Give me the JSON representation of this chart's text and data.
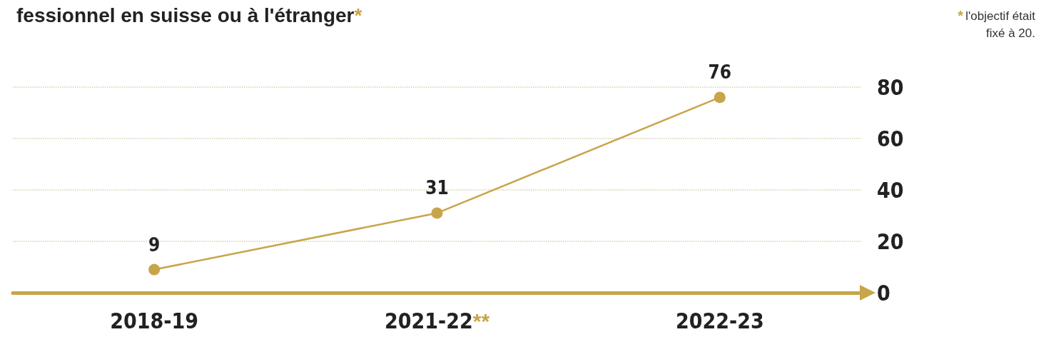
{
  "chart_data": {
    "type": "line",
    "title": "fessionnel en suisse ou à l'étranger*",
    "annotations": [
      "* l'objectif était fixé à 20."
    ],
    "categories": [
      "2018-19",
      "2021-22**",
      "2022-23"
    ],
    "series": [
      {
        "color": "#c8a54a",
        "values": [
          9,
          31,
          76
        ]
      }
    ],
    "ylim": [
      0,
      80
    ],
    "yticks": [
      0,
      20,
      40,
      60,
      80
    ],
    "grid": "y",
    "marker": "circle",
    "line_style": "solid",
    "data_labels": true
  }
}
